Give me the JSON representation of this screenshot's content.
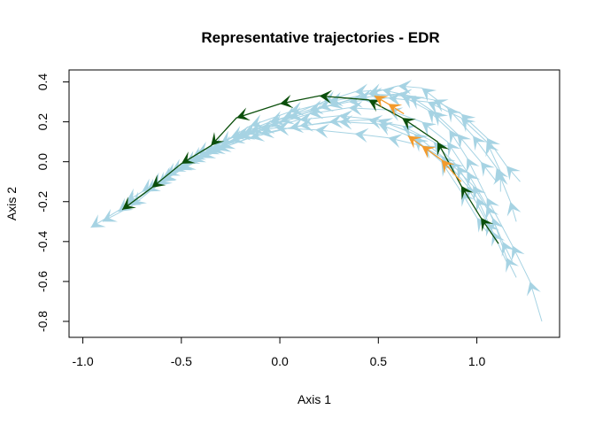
{
  "chart_data": {
    "type": "line",
    "title": "Representative trajectories - EDR",
    "xlabel": "Axis 1",
    "ylabel": "Axis 2",
    "xlim": [
      -1.07,
      1.42
    ],
    "ylim": [
      -0.88,
      0.46
    ],
    "xticks": [
      -1.0,
      -0.5,
      0.0,
      0.5,
      1.0
    ],
    "xtick_labels": [
      "-1.0",
      "-0.5",
      "0.0",
      "0.5",
      "1.0"
    ],
    "yticks": [
      -0.8,
      -0.6,
      -0.4,
      -0.2,
      0.0,
      0.2,
      0.4
    ],
    "ytick_labels": [
      "-0.8",
      "-0.6",
      "-0.4",
      "-0.2",
      "0.0",
      "0.2",
      "0.4"
    ],
    "grid": false,
    "legend": "none",
    "colors": {
      "background_trajectories": "#a6d3e3",
      "representative_dark": "#0b4f0b",
      "representative_orange": "#f39a2b",
      "axis": "#000000"
    },
    "series": [
      {
        "group": "background",
        "points": [
          [
            -0.96,
            -0.33
          ],
          [
            -0.78,
            -0.22
          ],
          [
            -0.62,
            -0.12
          ],
          [
            -0.48,
            -0.01
          ],
          [
            -0.3,
            0.09
          ],
          [
            -0.15,
            0.18
          ],
          [
            0.05,
            0.25
          ],
          [
            0.25,
            0.3
          ],
          [
            0.45,
            0.34
          ],
          [
            0.62,
            0.33
          ],
          [
            0.75,
            0.26
          ],
          [
            0.86,
            0.16
          ],
          [
            0.95,
            0.02
          ],
          [
            1.05,
            -0.18
          ],
          [
            1.18,
            -0.42
          ],
          [
            1.27,
            -0.6
          ],
          [
            1.33,
            -0.8
          ]
        ]
      },
      {
        "group": "background",
        "points": [
          [
            -0.9,
            -0.3
          ],
          [
            -0.75,
            -0.22
          ],
          [
            -0.6,
            -0.1
          ],
          [
            -0.45,
            0.0
          ],
          [
            -0.25,
            0.1
          ],
          [
            -0.05,
            0.18
          ],
          [
            0.15,
            0.24
          ],
          [
            0.35,
            0.27
          ],
          [
            0.55,
            0.26
          ],
          [
            0.72,
            0.2
          ],
          [
            0.85,
            0.1
          ],
          [
            0.95,
            -0.05
          ],
          [
            1.05,
            -0.22
          ],
          [
            1.13,
            -0.4
          ],
          [
            1.18,
            -0.5
          ]
        ]
      },
      {
        "group": "background",
        "points": [
          [
            -0.82,
            -0.25
          ],
          [
            -0.68,
            -0.15
          ],
          [
            -0.5,
            -0.04
          ],
          [
            -0.3,
            0.07
          ],
          [
            -0.1,
            0.16
          ],
          [
            0.1,
            0.21
          ],
          [
            0.3,
            0.23
          ],
          [
            0.5,
            0.21
          ],
          [
            0.68,
            0.14
          ],
          [
            0.82,
            0.03
          ],
          [
            0.95,
            -0.12
          ],
          [
            1.05,
            -0.3
          ],
          [
            1.1,
            -0.4
          ]
        ]
      },
      {
        "group": "background",
        "points": [
          [
            -0.65,
            -0.12
          ],
          [
            -0.45,
            0.01
          ],
          [
            -0.25,
            0.12
          ],
          [
            -0.05,
            0.2
          ],
          [
            0.15,
            0.26
          ],
          [
            0.35,
            0.3
          ],
          [
            0.55,
            0.32
          ],
          [
            0.75,
            0.3
          ],
          [
            0.92,
            0.22
          ],
          [
            1.05,
            0.1
          ],
          [
            1.12,
            -0.05
          ],
          [
            1.12,
            -0.15
          ]
        ]
      },
      {
        "group": "background",
        "points": [
          [
            -0.55,
            -0.05
          ],
          [
            -0.35,
            0.06
          ],
          [
            -0.15,
            0.15
          ],
          [
            0.05,
            0.22
          ],
          [
            0.25,
            0.28
          ],
          [
            0.45,
            0.34
          ],
          [
            0.6,
            0.38
          ],
          [
            0.72,
            0.37
          ],
          [
            0.85,
            0.27
          ],
          [
            0.98,
            0.13
          ],
          [
            1.1,
            -0.03
          ],
          [
            1.17,
            -0.2
          ],
          [
            1.2,
            -0.3
          ]
        ]
      },
      {
        "group": "background",
        "points": [
          [
            -0.7,
            -0.15
          ],
          [
            -0.52,
            -0.04
          ],
          [
            -0.32,
            0.06
          ],
          [
            -0.1,
            0.14
          ],
          [
            0.1,
            0.18
          ],
          [
            0.3,
            0.2
          ],
          [
            0.5,
            0.19
          ],
          [
            0.68,
            0.12
          ],
          [
            0.82,
            0.0
          ],
          [
            0.92,
            -0.15
          ],
          [
            1.0,
            -0.28
          ],
          [
            1.05,
            -0.35
          ]
        ]
      },
      {
        "group": "background",
        "points": [
          [
            -0.42,
            0.04
          ],
          [
            -0.22,
            0.13
          ],
          [
            -0.02,
            0.17
          ],
          [
            0.18,
            0.16
          ],
          [
            0.38,
            0.14
          ],
          [
            0.55,
            0.12
          ],
          [
            0.72,
            0.08
          ],
          [
            0.86,
            0.0
          ],
          [
            0.98,
            -0.12
          ],
          [
            1.08,
            -0.28
          ],
          [
            1.15,
            -0.48
          ],
          [
            1.2,
            -0.58
          ]
        ]
      },
      {
        "group": "background",
        "points": [
          [
            -0.78,
            -0.2
          ],
          [
            -0.6,
            -0.09
          ],
          [
            -0.4,
            0.02
          ],
          [
            -0.2,
            0.12
          ],
          [
            0.0,
            0.2
          ],
          [
            0.2,
            0.27
          ],
          [
            0.4,
            0.32
          ],
          [
            0.6,
            0.34
          ],
          [
            0.78,
            0.31
          ],
          [
            0.92,
            0.24
          ],
          [
            1.05,
            0.12
          ],
          [
            1.15,
            -0.02
          ],
          [
            1.22,
            -0.1
          ]
        ]
      },
      {
        "group": "background",
        "points": [
          [
            -0.35,
            0.05
          ],
          [
            -0.15,
            0.12
          ],
          [
            0.05,
            0.17
          ],
          [
            0.25,
            0.2
          ],
          [
            0.45,
            0.21
          ],
          [
            0.62,
            0.18
          ],
          [
            0.78,
            0.1
          ],
          [
            0.9,
            -0.02
          ],
          [
            1.0,
            -0.18
          ],
          [
            1.08,
            -0.35
          ],
          [
            1.15,
            -0.5
          ]
        ]
      },
      {
        "group": "background",
        "points": [
          [
            -0.58,
            -0.07
          ],
          [
            -0.38,
            0.04
          ],
          [
            -0.18,
            0.14
          ],
          [
            0.02,
            0.22
          ],
          [
            0.22,
            0.3
          ],
          [
            0.38,
            0.35
          ],
          [
            0.52,
            0.36
          ],
          [
            0.66,
            0.33
          ],
          [
            0.78,
            0.25
          ],
          [
            0.9,
            0.14
          ],
          [
            1.02,
            0.0
          ],
          [
            1.1,
            -0.1
          ]
        ]
      },
      {
        "group": "representative_dark",
        "points": [
          [
            -0.8,
            -0.24
          ],
          [
            -0.65,
            -0.13
          ],
          [
            -0.5,
            -0.01
          ],
          [
            -0.35,
            0.08
          ],
          [
            -0.22,
            0.22
          ],
          [
            0.0,
            0.29
          ],
          [
            0.2,
            0.33
          ],
          [
            0.45,
            0.31
          ],
          [
            0.62,
            0.22
          ],
          [
            0.8,
            0.1
          ],
          [
            0.92,
            -0.12
          ],
          [
            1.02,
            -0.28
          ],
          [
            1.11,
            -0.41
          ]
        ]
      },
      {
        "group": "representative_orange",
        "points": [
          [
            0.65,
            0.13
          ],
          [
            0.72,
            0.08
          ],
          [
            0.82,
            0.01
          ],
          [
            0.92,
            -0.1
          ]
        ]
      },
      {
        "group": "representative_orange",
        "points": [
          [
            0.48,
            0.33
          ],
          [
            0.55,
            0.29
          ],
          [
            0.63,
            0.24
          ]
        ]
      }
    ]
  }
}
